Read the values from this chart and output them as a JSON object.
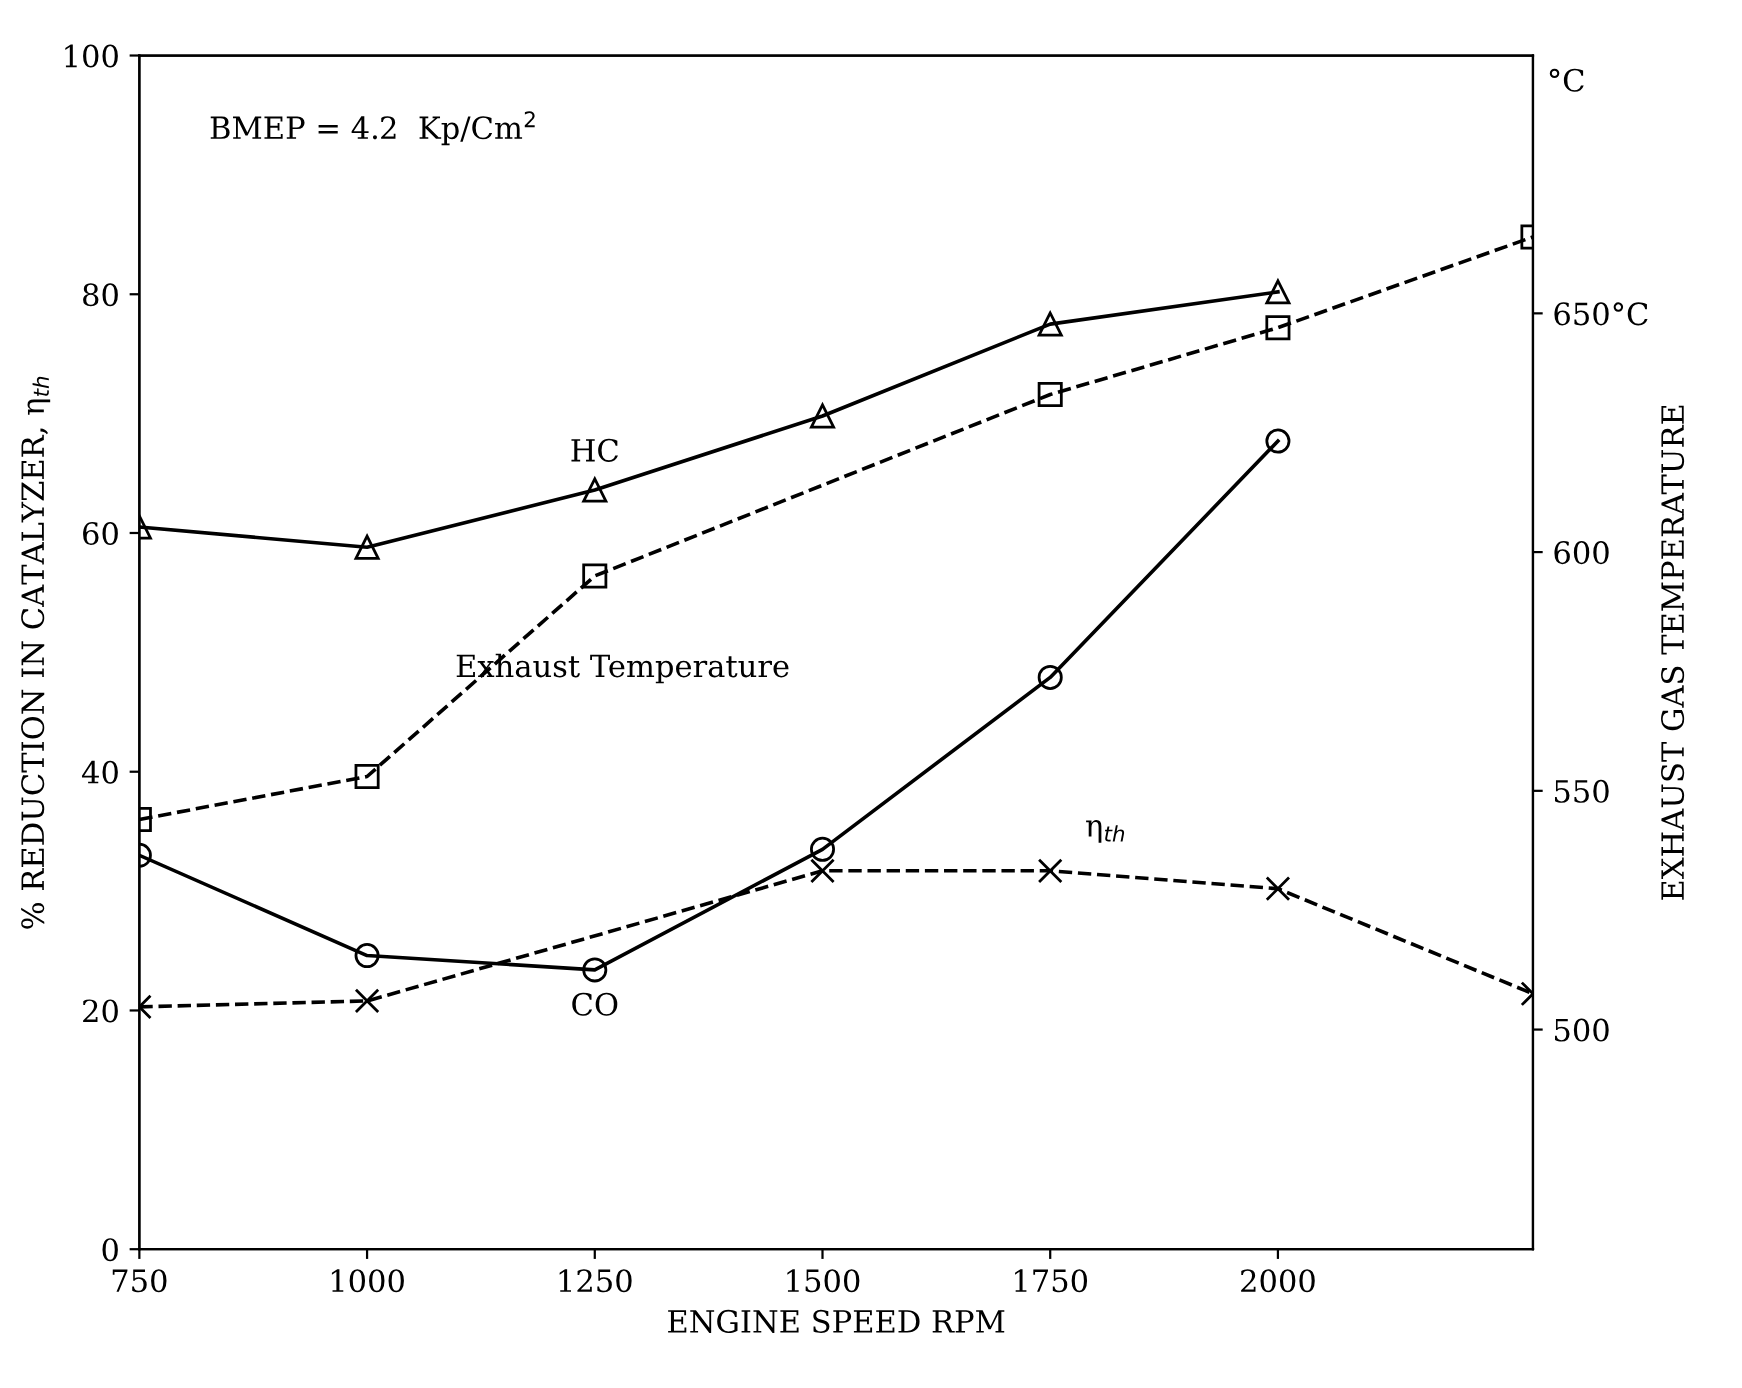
{
  "chart_data": {
    "type": "line",
    "xlabel": "ENGINE SPEED RPM",
    "ylabel": "% REDUCTION IN CATALYZER, η$_{th}$",
    "y2label": "EXHAUST GAS TEMPERATURE",
    "xlim": [
      750,
      2280
    ],
    "xticks": [
      750,
      1000,
      1250,
      1500,
      1750,
      2000
    ],
    "ylim": [
      0,
      100
    ],
    "yticks": [
      0,
      20,
      40,
      60,
      80,
      100
    ],
    "y2lim": [
      454,
      704
    ],
    "y2ticks": [
      500,
      550,
      600,
      {
        "value": 650,
        "label": "650°C"
      }
    ],
    "grid": false,
    "legend": false,
    "series": [
      {
        "name": "HC",
        "color": "#000000",
        "marker": "triangle",
        "line_style": "solid",
        "x": [
          750,
          1000,
          1250,
          1500,
          1750,
          2000
        ],
        "values": [
          60.5,
          58.8,
          63.6,
          69.8,
          77.5,
          80.2
        ]
      },
      {
        "name": "Exhaust Temperature",
        "color": "#000000",
        "marker": "square",
        "line_style": "dashed",
        "axis": "y2",
        "x": [
          750,
          1000,
          1250,
          1750,
          2000,
          2280
        ],
        "values": [
          544,
          553,
          595,
          633,
          647,
          666
        ]
      },
      {
        "name": "CO",
        "color": "#000000",
        "marker": "circle",
        "line_style": "solid",
        "x": [
          750,
          1000,
          1250,
          1500,
          1750,
          2000
        ],
        "values": [
          33,
          24.6,
          23.4,
          33.5,
          47.9,
          67.7
        ]
      },
      {
        "name": "η$_{th}$",
        "color": "#000000",
        "marker": "cross",
        "line_style": "dashed",
        "x": [
          750,
          1000,
          1500,
          1750,
          2000,
          2280
        ],
        "values": [
          20.3,
          20.8,
          31.7,
          31.7,
          30.2,
          21.4
        ]
      }
    ],
    "annotations": [
      "BMEP = 4.2  Kp/Cm$^{2}$",
      "°C"
    ]
  }
}
